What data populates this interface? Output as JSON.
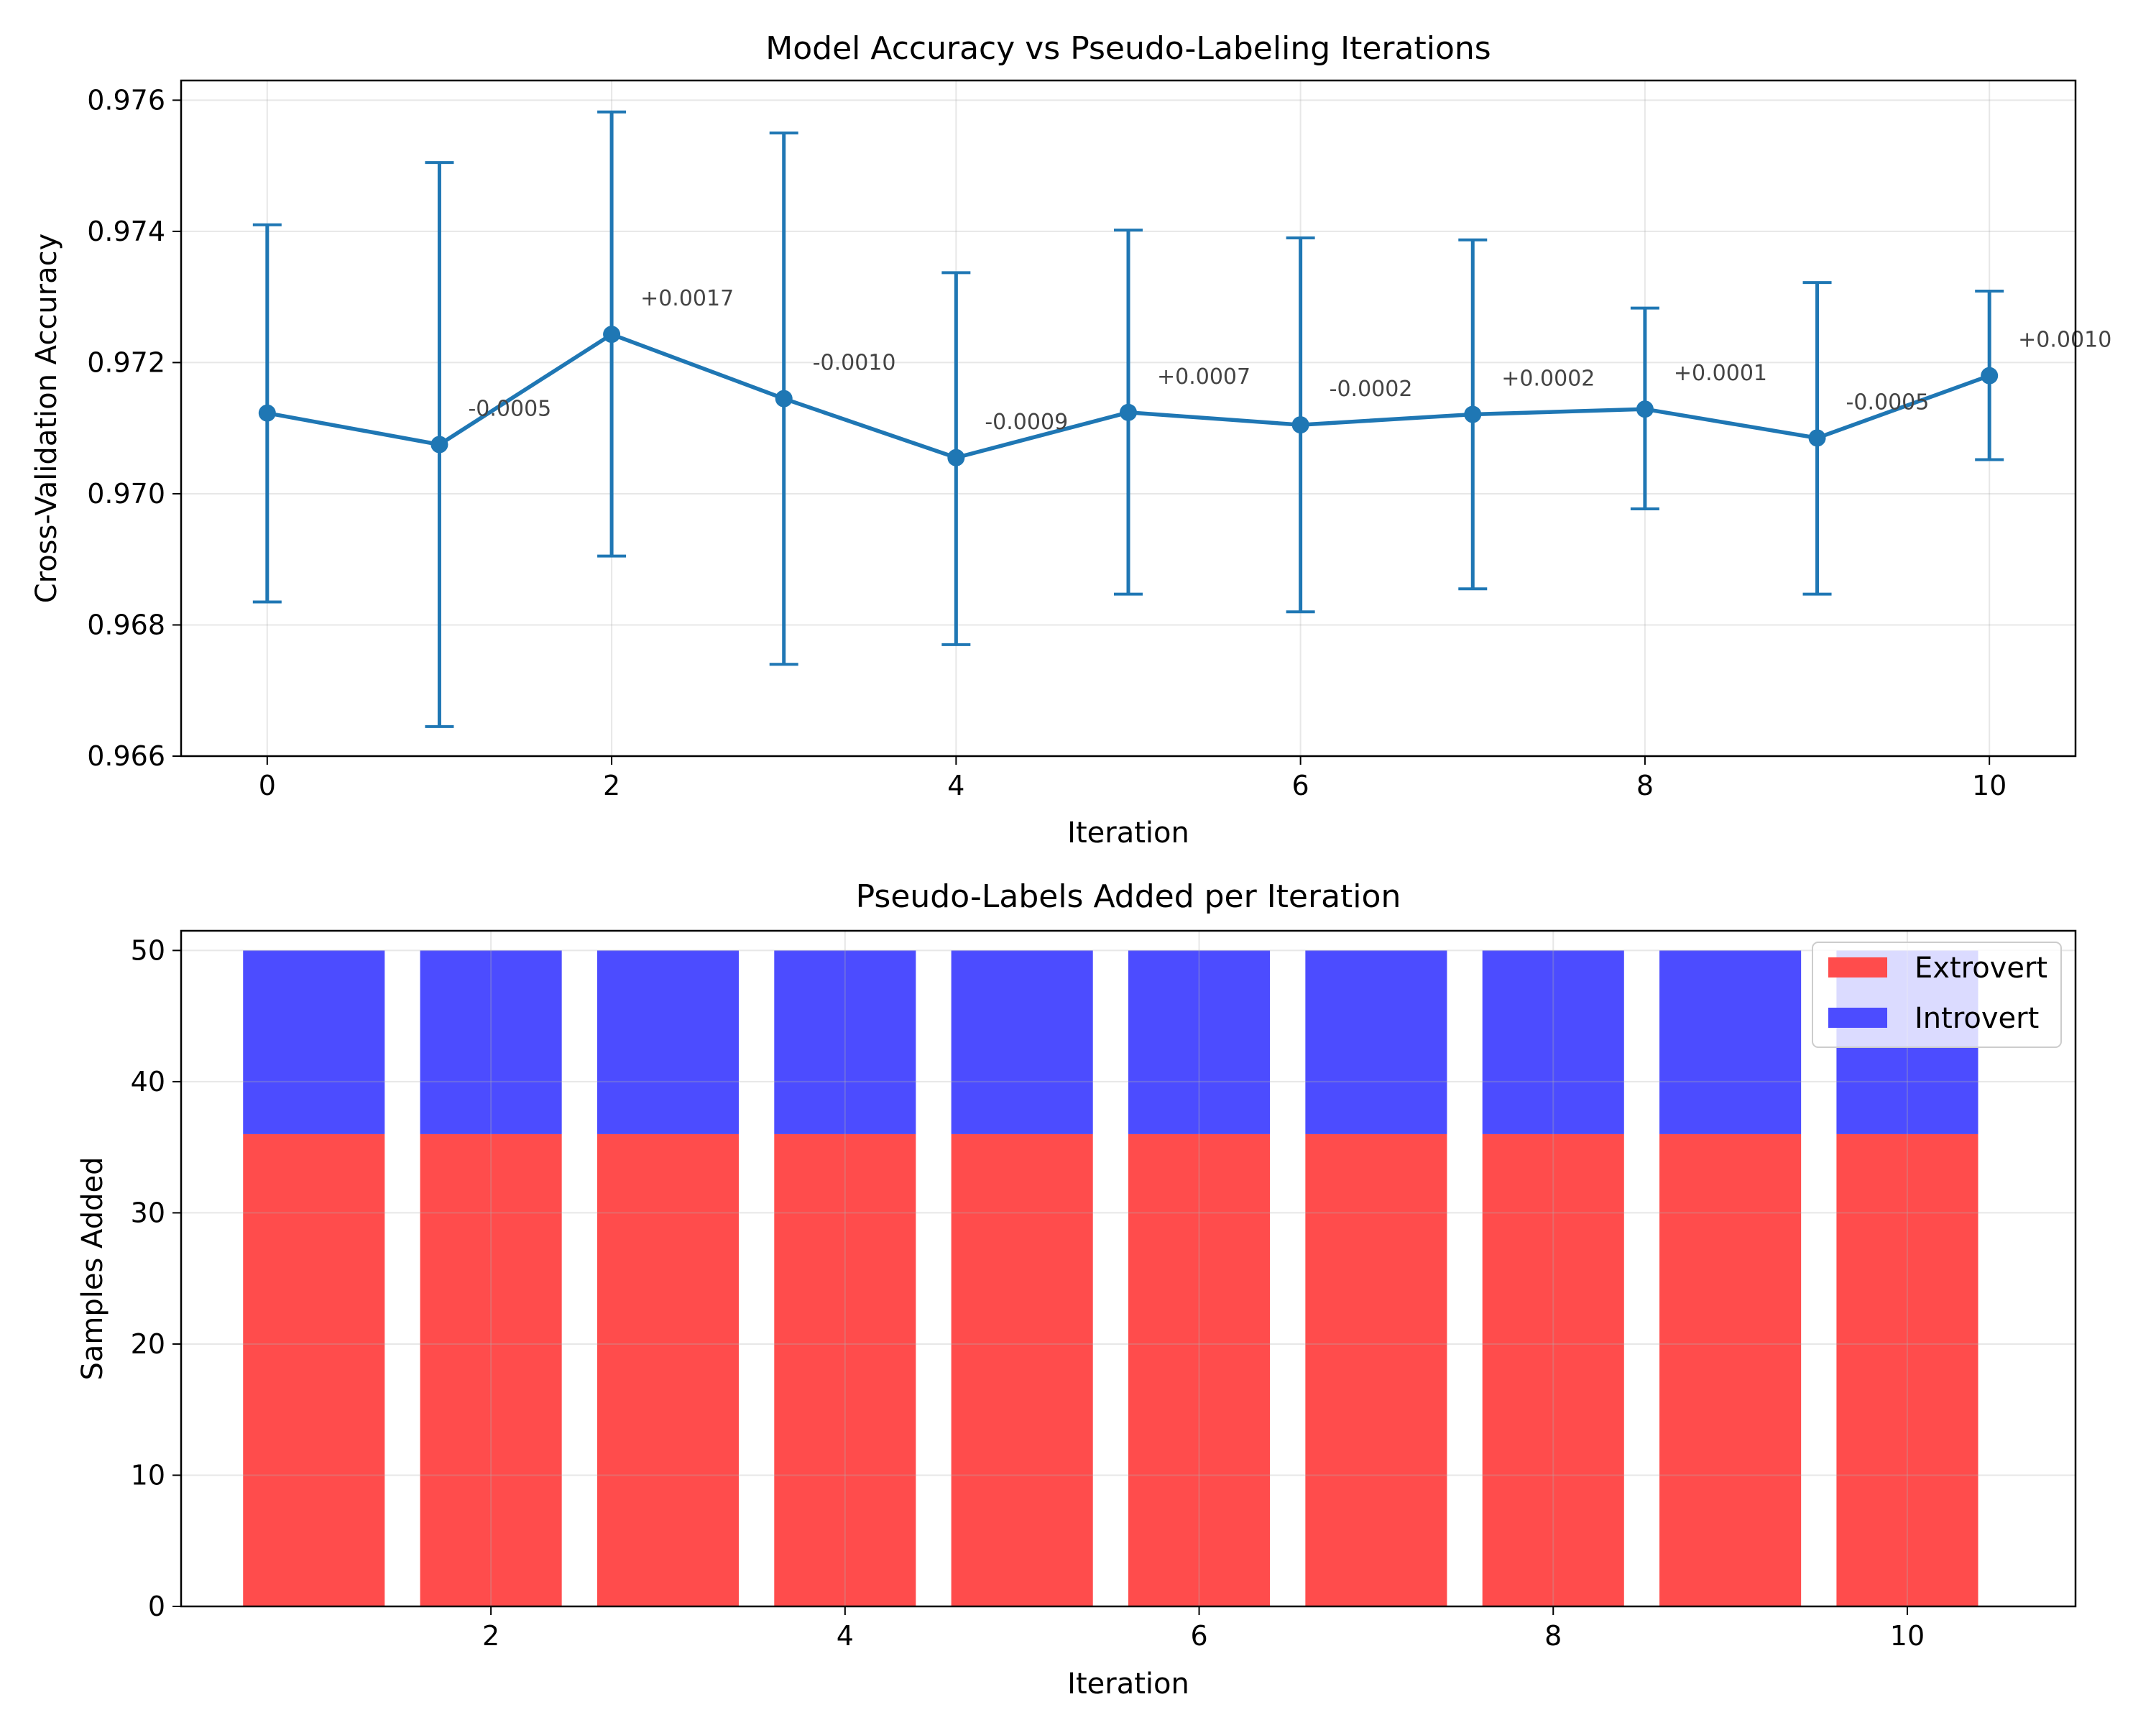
{
  "chart_data": [
    {
      "type": "line",
      "title": "Model Accuracy vs Pseudo-Labeling Iterations",
      "xlabel": "Iteration",
      "ylabel": "Cross-Validation Accuracy",
      "xlim": [
        -0.5,
        10.5
      ],
      "ylim": [
        0.966,
        0.9763
      ],
      "xticks": [
        0,
        2,
        4,
        6,
        8,
        10
      ],
      "xtick_labels": [
        "0",
        "2",
        "4",
        "6",
        "8",
        "10"
      ],
      "yticks": [
        0.966,
        0.968,
        0.97,
        0.972,
        0.974,
        0.976
      ],
      "ytick_labels": [
        "0.966",
        "0.968",
        "0.970",
        "0.972",
        "0.974",
        "0.976"
      ],
      "grid": true,
      "color": "#1f77b4",
      "series": [
        {
          "x": [
            0,
            1,
            2,
            3,
            4,
            5,
            6,
            7,
            8,
            9,
            10
          ],
          "values": [
            0.97123,
            0.97075,
            0.97243,
            0.97145,
            0.97055,
            0.97124,
            0.97105,
            0.97121,
            0.97129,
            0.97085,
            0.9718
          ],
          "err_low": [
            0.96835,
            0.96645,
            0.96905,
            0.9674,
            0.9677,
            0.96847,
            0.9682,
            0.96855,
            0.96977,
            0.96847,
            0.97052
          ],
          "err_high": [
            0.9741,
            0.97505,
            0.97582,
            0.9755,
            0.97337,
            0.97402,
            0.9739,
            0.97387,
            0.97283,
            0.97322,
            0.97309
          ]
        }
      ],
      "annotations": [
        "-0.0005",
        "+0.0017",
        "-0.0010",
        "-0.0009",
        "+0.0007",
        "-0.0002",
        "+0.0002",
        "+0.0001",
        "-0.0005",
        "+0.0010"
      ]
    },
    {
      "type": "bar",
      "stacked": true,
      "title": "Pseudo-Labels Added per Iteration",
      "xlabel": "Iteration",
      "ylabel": "Samples Added",
      "categories": [
        1,
        2,
        3,
        4,
        5,
        6,
        7,
        8,
        9,
        10
      ],
      "xlim": [
        0.25,
        10.95
      ],
      "ylim": [
        0,
        51.5
      ],
      "xticks": [
        2,
        4,
        6,
        8,
        10
      ],
      "xtick_labels": [
        "2",
        "4",
        "6",
        "8",
        "10"
      ],
      "yticks": [
        0,
        10,
        20,
        30,
        40,
        50
      ],
      "ytick_labels": [
        "0",
        "10",
        "20",
        "30",
        "40",
        "50"
      ],
      "grid": true,
      "legend_position": "top-right",
      "series": [
        {
          "name": "Extrovert",
          "color": "#ff4c4c",
          "values": [
            36,
            36,
            36,
            36,
            36,
            36,
            36,
            36,
            36,
            36
          ]
        },
        {
          "name": "Introvert",
          "color": "#4c4cff",
          "values": [
            14,
            14,
            14,
            14,
            14,
            14,
            14,
            14,
            14,
            14
          ]
        }
      ]
    }
  ]
}
